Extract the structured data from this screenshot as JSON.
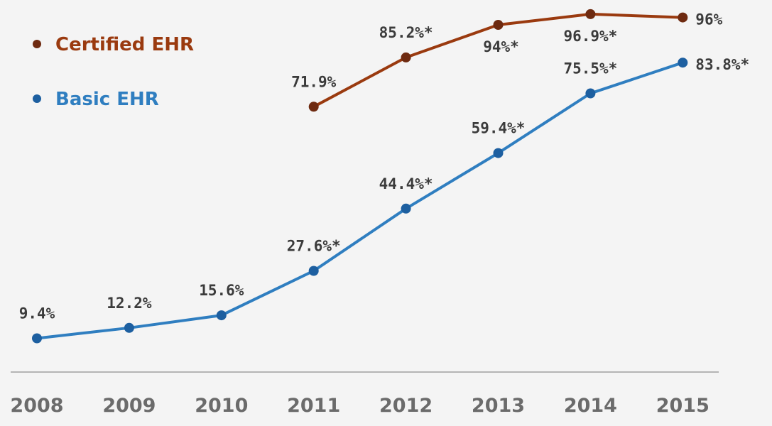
{
  "chart_data": {
    "type": "line",
    "x": [
      2008,
      2009,
      2010,
      2011,
      2012,
      2013,
      2014,
      2015
    ],
    "tick_labels": [
      "2008",
      "2009",
      "2010",
      "2011",
      "2012",
      "2013",
      "2014",
      "2015"
    ],
    "ylim": [
      0,
      100
    ],
    "grid": false,
    "legend_position": "top-left",
    "series": [
      {
        "name": "Certified EHR",
        "color": "#9a3a0f",
        "marker_color": "#6e2a10",
        "values": [
          null,
          null,
          null,
          71.9,
          85.2,
          94,
          96.9,
          96
        ],
        "labels": [
          "",
          "",
          "",
          "71.9%",
          "85.2%*",
          "94%*",
          "96.9%*",
          "96%"
        ]
      },
      {
        "name": "Basic EHR",
        "color": "#2f7ec0",
        "marker_color": "#1d5fa0",
        "values": [
          9.4,
          12.2,
          15.6,
          27.6,
          44.4,
          59.4,
          75.5,
          83.8
        ],
        "labels": [
          "9.4%",
          "12.2%",
          "15.6%",
          "27.6%*",
          "44.4%*",
          "59.4%*",
          "75.5%*",
          "83.8%*"
        ]
      }
    ]
  }
}
